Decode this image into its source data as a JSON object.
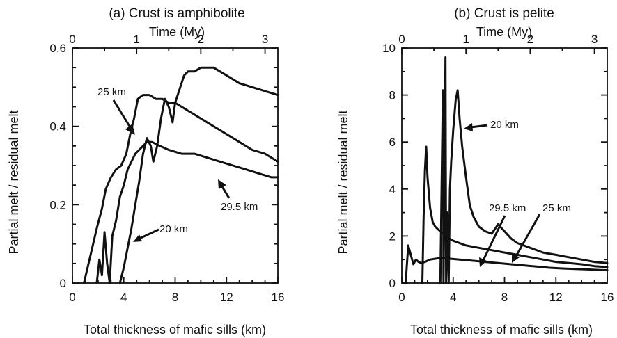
{
  "chart_data": [
    {
      "type": "line",
      "title": "(a) Crust is amphibolite",
      "xlabel": "Total thickness of mafic sills (km)",
      "ylabel": "Partial melt / residual melt",
      "top_xlabel": "Time (My)",
      "xlim": [
        0,
        16
      ],
      "ylim": [
        0,
        0.6
      ],
      "top_xlim": [
        0,
        3.2
      ],
      "xticks": [
        "0",
        "4",
        "8",
        "12",
        "16"
      ],
      "yticks": [
        "0",
        "0.2",
        "0.4",
        "0.6"
      ],
      "top_xticks": [
        "0",
        "1",
        "2",
        "3"
      ],
      "series": [
        {
          "name": "25 km",
          "x": [
            0.9,
            1.4,
            1.9,
            2.3,
            2.6,
            3.0,
            3.4,
            3.8,
            4.2,
            4.5,
            4.8,
            5.1,
            5.5,
            6.0,
            6.5,
            7.0,
            7.5,
            8.0,
            8.5,
            9.0,
            10.0,
            11.0,
            12.0,
            13.0,
            14.0,
            15.0,
            16.0
          ],
          "y": [
            0.0,
            0.07,
            0.14,
            0.19,
            0.24,
            0.27,
            0.29,
            0.3,
            0.33,
            0.38,
            0.42,
            0.47,
            0.48,
            0.48,
            0.47,
            0.47,
            0.46,
            0.46,
            0.45,
            0.44,
            0.42,
            0.4,
            0.38,
            0.36,
            0.34,
            0.33,
            0.31
          ]
        },
        {
          "name": "20 km",
          "x": [
            3.7,
            4.0,
            4.3,
            4.6,
            4.9,
            5.2,
            5.5,
            5.8,
            6.1,
            6.3,
            6.6,
            6.9,
            7.2,
            7.5,
            7.8,
            8.0,
            8.3,
            8.7,
            9.0,
            9.5,
            10.0,
            10.5,
            11.0,
            11.5,
            12.0,
            13.0,
            14.0,
            15.0,
            16.0
          ],
          "y": [
            0.0,
            0.04,
            0.09,
            0.14,
            0.2,
            0.26,
            0.33,
            0.37,
            0.35,
            0.31,
            0.35,
            0.42,
            0.47,
            0.45,
            0.41,
            0.46,
            0.49,
            0.53,
            0.54,
            0.54,
            0.55,
            0.55,
            0.55,
            0.54,
            0.53,
            0.51,
            0.5,
            0.49,
            0.48
          ]
        },
        {
          "name": "29.5 km",
          "x": [
            1.9,
            2.1,
            2.3,
            2.5,
            2.7,
            2.9,
            3.1,
            3.4,
            3.7,
            4.0,
            4.3,
            4.6,
            4.9,
            5.2,
            5.5,
            5.8,
            6.2,
            6.8,
            7.5,
            8.5,
            9.5,
            10.5,
            11.5,
            12.5,
            13.5,
            14.5,
            15.5,
            16.0
          ],
          "y": [
            0.0,
            0.06,
            0.02,
            0.13,
            0.05,
            0.0,
            0.12,
            0.16,
            0.22,
            0.25,
            0.29,
            0.31,
            0.33,
            0.34,
            0.35,
            0.36,
            0.36,
            0.35,
            0.34,
            0.33,
            0.33,
            0.32,
            0.31,
            0.3,
            0.29,
            0.28,
            0.27,
            0.27
          ]
        }
      ],
      "annotations": [
        "25 km",
        "20 km",
        "29.5 km"
      ]
    },
    {
      "type": "line",
      "title": "(b) Crust is pelite",
      "xlabel": "Total thickness of mafic sills (km)",
      "ylabel": "Partial melt / residual melt",
      "top_xlabel": "Time (My)",
      "xlim": [
        0,
        16
      ],
      "ylim": [
        0,
        10
      ],
      "top_xlim": [
        0,
        3.2
      ],
      "xticks": [
        "0",
        "4",
        "8",
        "12",
        "16"
      ],
      "yticks": [
        "0",
        "2",
        "4",
        "6",
        "8",
        "10"
      ],
      "top_xticks": [
        "0",
        "1",
        "2",
        "3"
      ],
      "series": [
        {
          "name": "20 km",
          "x": [
            3.0,
            3.2,
            3.25,
            3.4,
            3.45,
            3.55,
            3.65,
            3.75,
            3.85,
            4.0,
            4.2,
            4.35,
            4.5,
            4.7,
            5.0,
            5.3,
            5.6,
            6.0,
            6.5,
            7.0,
            7.5,
            8.0,
            8.5,
            9.0,
            10.0,
            11.0,
            12.0,
            13.0,
            14.0,
            15.0,
            16.0
          ],
          "y": [
            0.0,
            8.2,
            0.0,
            9.6,
            0.0,
            3.0,
            0.0,
            4.0,
            5.2,
            6.5,
            7.8,
            8.2,
            7.0,
            5.8,
            4.5,
            3.3,
            2.8,
            2.4,
            2.2,
            2.1,
            2.5,
            2.2,
            1.9,
            1.7,
            1.5,
            1.3,
            1.2,
            1.1,
            1.0,
            0.9,
            0.85
          ]
        },
        {
          "name": "25 km",
          "x": [
            1.6,
            1.7,
            1.8,
            1.9,
            2.0,
            2.2,
            2.4,
            2.6,
            2.8,
            3.0,
            3.4,
            4.0,
            5.0,
            6.0,
            7.0,
            8.0,
            9.0,
            10.0,
            11.0,
            12.0,
            13.0,
            14.0,
            15.0,
            16.0
          ],
          "y": [
            0.0,
            2.8,
            4.8,
            5.8,
            4.5,
            3.2,
            2.6,
            2.4,
            2.3,
            2.2,
            2.0,
            1.8,
            1.6,
            1.5,
            1.4,
            1.3,
            1.2,
            1.1,
            1.0,
            0.9,
            0.85,
            0.8,
            0.72,
            0.68
          ]
        },
        {
          "name": "29.5 km",
          "x": [
            0.3,
            0.5,
            0.7,
            0.9,
            1.1,
            1.3,
            1.5,
            1.8,
            2.2,
            2.8,
            3.5,
            4.5,
            5.5,
            6.5,
            7.5,
            8.5,
            9.5,
            10.5,
            11.5,
            12.5,
            13.5,
            14.5,
            15.5,
            16.0
          ],
          "y": [
            0.0,
            1.6,
            1.2,
            0.8,
            1.0,
            0.9,
            0.85,
            0.9,
            1.0,
            1.05,
            1.05,
            1.0,
            0.95,
            0.9,
            0.85,
            0.8,
            0.75,
            0.7,
            0.65,
            0.62,
            0.6,
            0.58,
            0.55,
            0.55
          ]
        }
      ],
      "annotations": [
        "20 km",
        "29.5 km",
        "25 km"
      ]
    }
  ]
}
